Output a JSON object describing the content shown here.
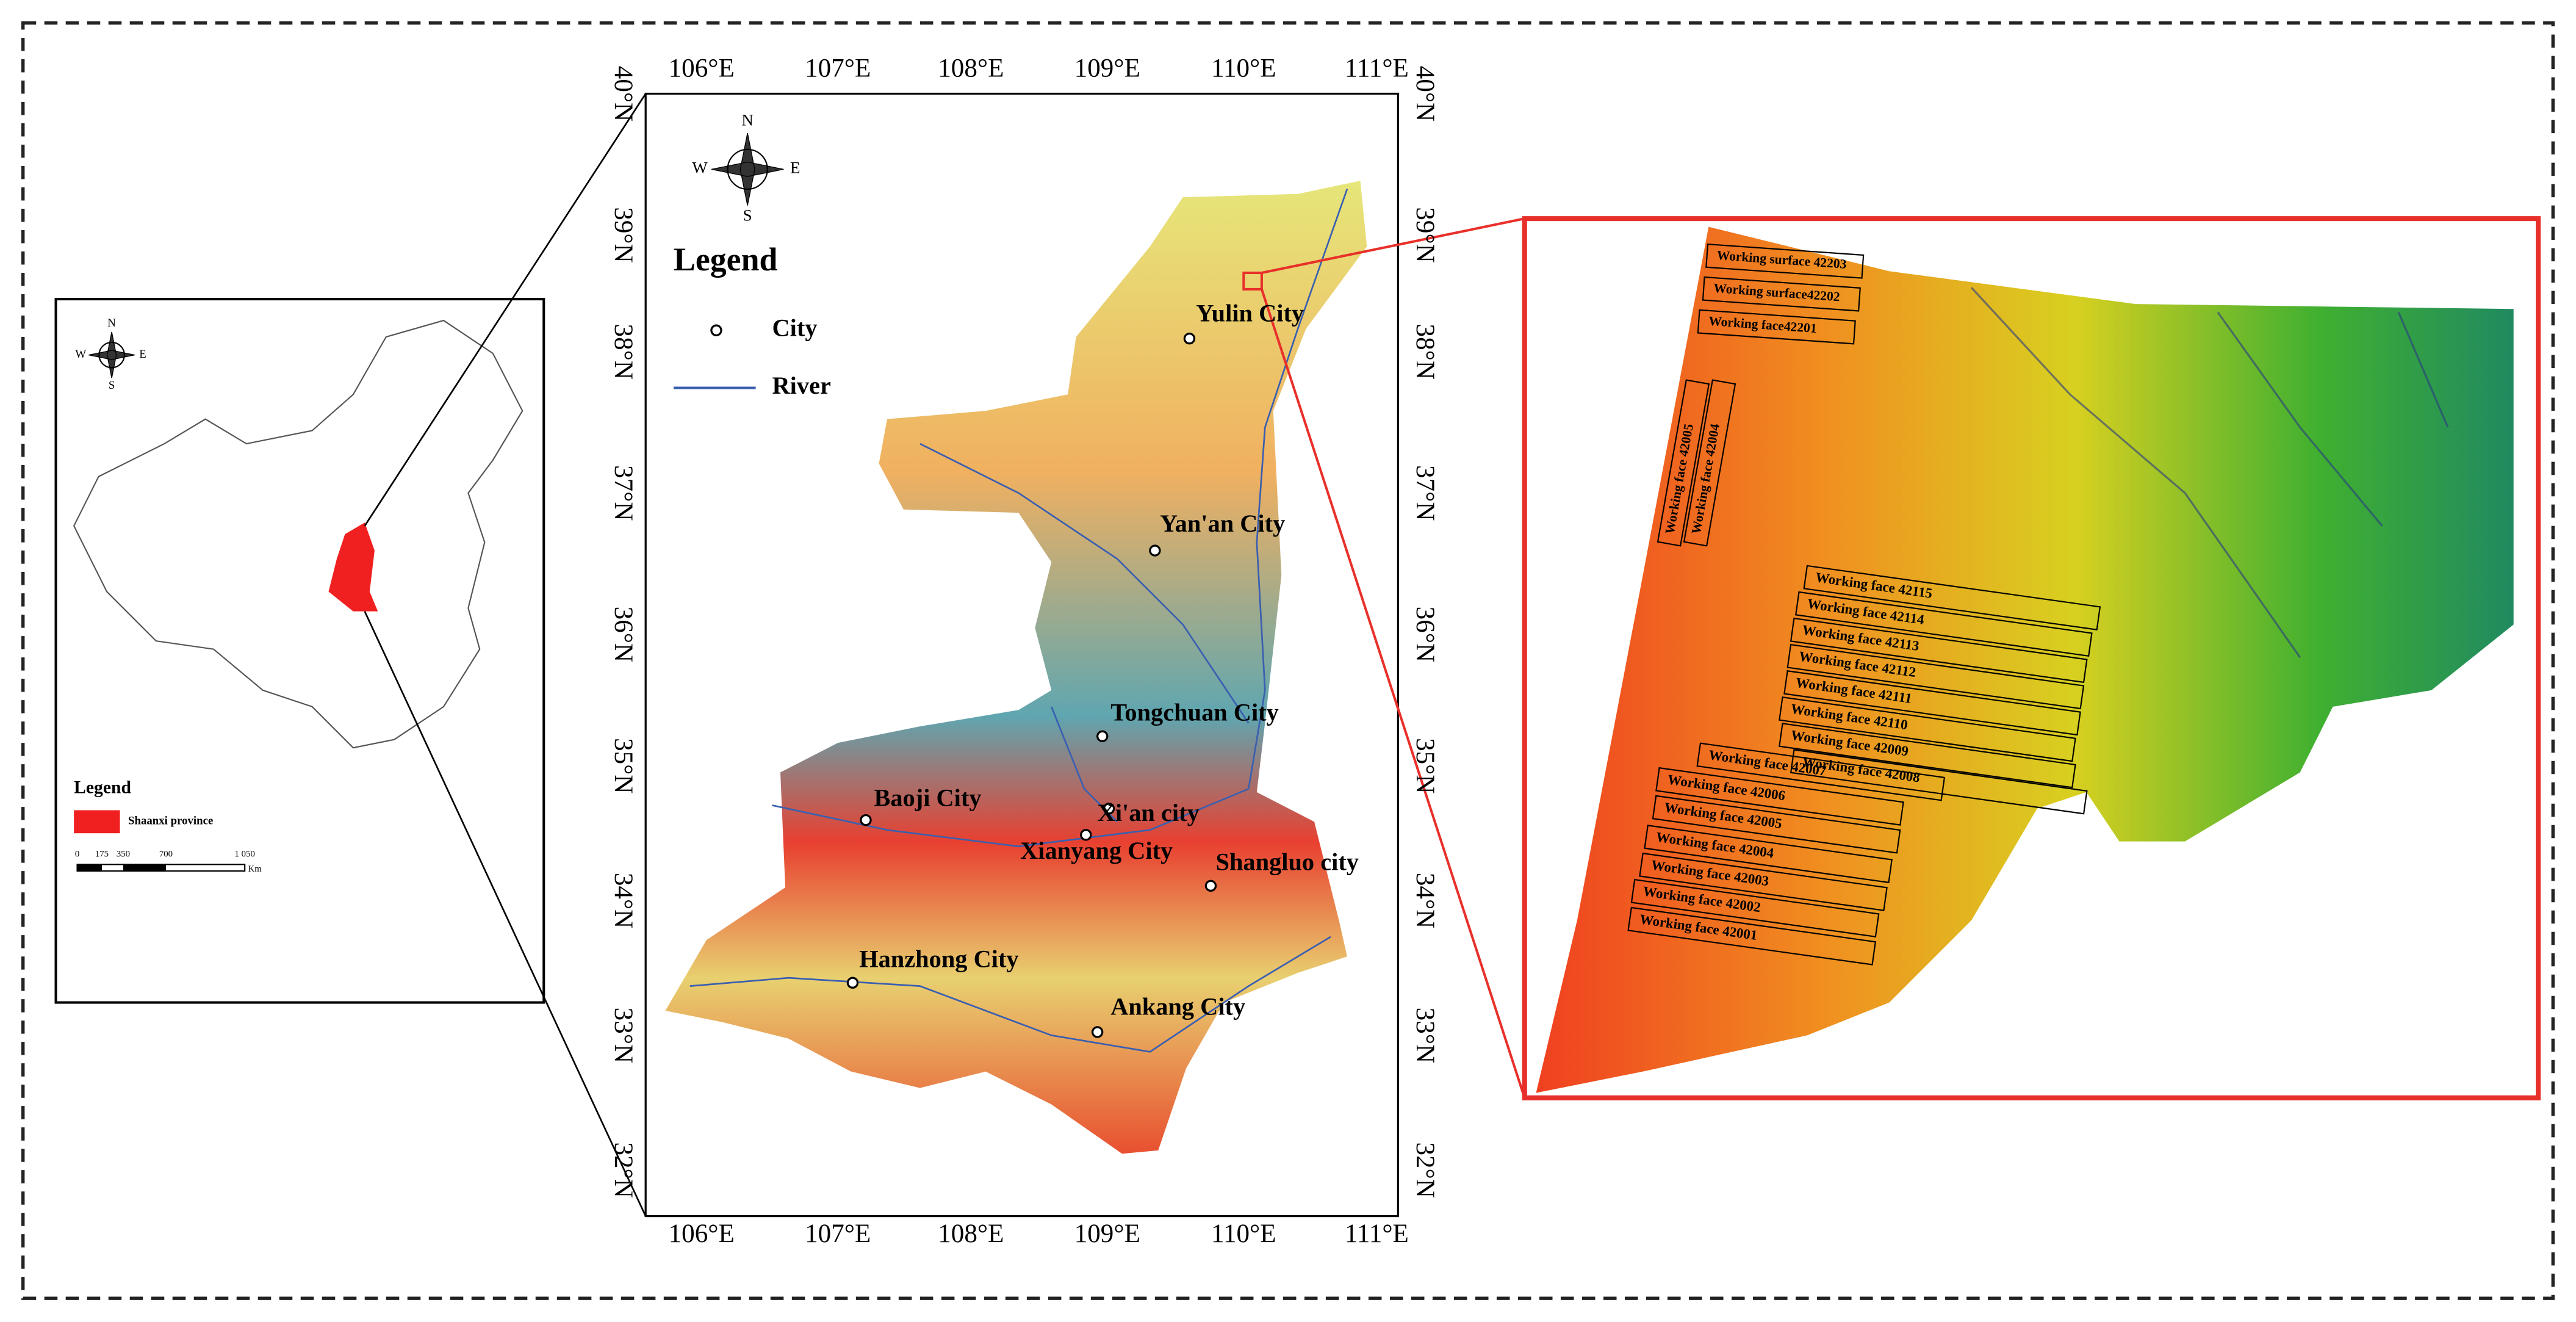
{
  "china_inset": {
    "compass": [
      "N",
      "E",
      "S",
      "W"
    ],
    "legend_title": "Legend",
    "legend_item": "Shaanxi province",
    "scale_labels": [
      "0",
      "175",
      "350",
      "700",
      "1 050"
    ],
    "scale_unit": "Km"
  },
  "shaanxi_map": {
    "lon_ticks": [
      "106°E",
      "107°E",
      "108°E",
      "109°E",
      "110°E",
      "111°E"
    ],
    "lat_ticks": [
      "32°N",
      "33°N",
      "34°N",
      "35°N",
      "36°N",
      "37°N",
      "38°N",
      "39°N",
      "40°N"
    ],
    "compass": [
      "N",
      "E",
      "S",
      "W"
    ],
    "legend_title": "Legend",
    "legend_items": [
      "City",
      "River"
    ],
    "cities": [
      "Yulin City",
      "Yan'an City",
      "Tongchuan City",
      "Baoji City",
      "Xi'an city",
      "Xianyang City",
      "Shangluo city",
      "Hanzhong City",
      "Ankang City"
    ]
  },
  "detail_map": {
    "top_faces": [
      "Working surface 42203",
      "Working surface42202",
      "Working face42201"
    ],
    "vertical_faces": [
      "Working face 42005",
      "Working face 42004"
    ],
    "lower_faces": [
      "Working face 42115",
      "Working face 42114",
      "Working face 42113",
      "Working face 42112",
      "Working face 42111",
      "Working face 42110",
      "Working face 42009",
      "Working face 42008",
      "Working face 42007",
      "Working face 42006",
      "Working face 42005",
      "Working face 42004",
      "Working face 42003",
      "Working face 42002",
      "Working face 42001"
    ]
  }
}
